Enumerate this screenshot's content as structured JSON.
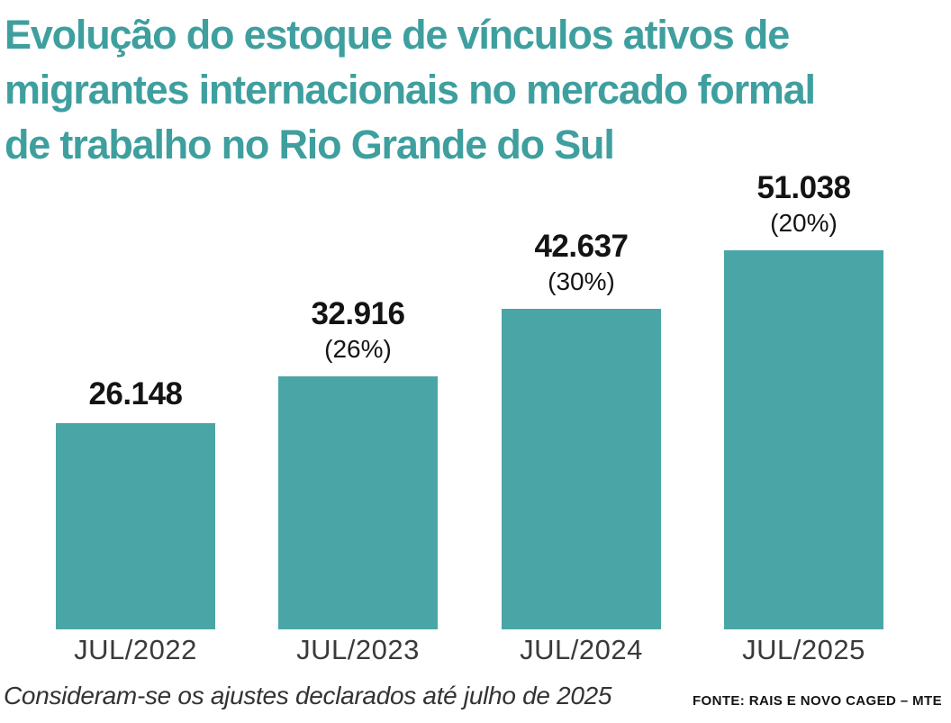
{
  "title": "Evolução do estoque de vínculos ativos de\nmigrantes internacionais no mercado formal\nde trabalho no Rio Grande do Sul",
  "footnote": "Consideram-se os ajustes declarados até julho de 2025",
  "source": "FONTE: RAIS E NOVO CAGED – MTE",
  "colors": {
    "title_teal": "#3f9f9f",
    "bar_teal": "#4aa6a6",
    "label_black": "#141414",
    "axis_gray": "#3a3a3a"
  },
  "chart_data": {
    "type": "bar",
    "title": "Evolução do estoque de vínculos ativos de migrantes internacionais no mercado formal de trabalho no Rio Grande do Sul",
    "categories": [
      "JUL/2022",
      "JUL/2023",
      "JUL/2024",
      "JUL/2025"
    ],
    "values": [
      26148,
      32916,
      42637,
      51038
    ],
    "value_labels": [
      "26.148",
      "32.916",
      "42.637",
      "51.038"
    ],
    "pct_labels": [
      "",
      "(26%)",
      "(30%)",
      "(20%)"
    ],
    "bar_color": "#4aa6a6",
    "xlabel": "",
    "ylabel": "",
    "grid": false,
    "legend_position": "none",
    "axis_lines": "none"
  }
}
